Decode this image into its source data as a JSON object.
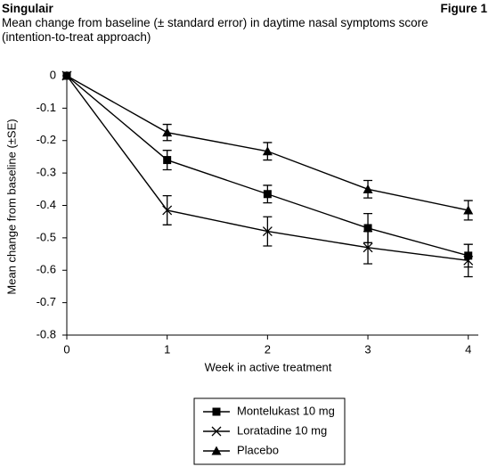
{
  "chart_data": {
    "type": "line",
    "title": "Singulair",
    "figure_label": "Figure 1",
    "subtitle": "Mean change from baseline (± standard error) in daytime nasal symptoms score (intention-to-treat approach)",
    "x_label": "Week in active treatment",
    "y_label": "Mean change from baseline (±SE)",
    "x": [
      0,
      1,
      2,
      3,
      4
    ],
    "xlim": [
      0,
      4.1
    ],
    "xticks": [
      0,
      1,
      2,
      3,
      4
    ],
    "ylim": [
      -0.8,
      0
    ],
    "yticks": [
      0,
      -0.1,
      -0.2,
      -0.3,
      -0.4,
      -0.5,
      -0.6,
      -0.7,
      -0.8
    ],
    "series": [
      {
        "name": "Montelukast 10 mg",
        "color": "#000000",
        "marker": "square",
        "values": [
          0,
          -0.26,
          -0.365,
          -0.47,
          -0.555
        ],
        "errors": [
          0,
          0.03,
          0.027,
          0.045,
          0.035
        ]
      },
      {
        "name": "Loratadine 10 mg",
        "color": "#000000",
        "marker": "x",
        "values": [
          0,
          -0.415,
          -0.48,
          -0.53,
          -0.57
        ],
        "errors": [
          0,
          0.045,
          0.045,
          0.05,
          0.05
        ]
      },
      {
        "name": "Placebo",
        "color": "#000000",
        "marker": "triangle",
        "values": [
          0,
          -0.175,
          -0.233,
          -0.35,
          -0.415
        ],
        "errors": [
          0,
          0.025,
          0.027,
          0.027,
          0.03
        ]
      }
    ]
  }
}
